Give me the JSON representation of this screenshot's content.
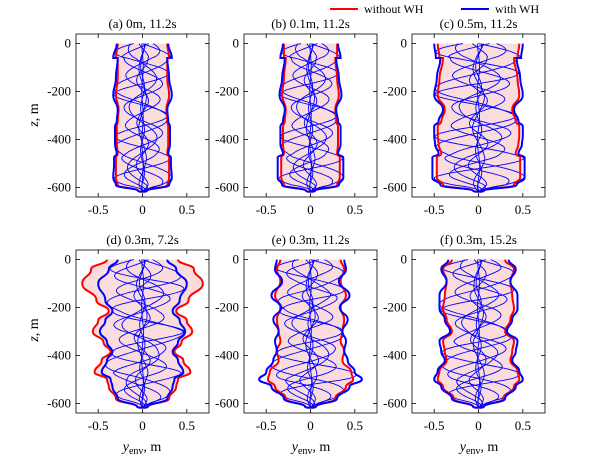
{
  "legend": {
    "items": [
      {
        "label": "without WH",
        "color": "#ff0000"
      },
      {
        "label": "with WH",
        "color": "#0000ff"
      }
    ],
    "placement": "top-right"
  },
  "axes_text": {
    "ylabel_italic": "z",
    "ylabel_rest": ", m",
    "xlabel_main": "y",
    "xlabel_sub": "env",
    "xlabel_rest": ", m"
  },
  "chart_data": [
    {
      "type": "line",
      "title": "(a)   0m, 11.2s",
      "xlim": [
        -0.75,
        0.75
      ],
      "ylim": [
        -640,
        40
      ],
      "xticks": [
        -0.5,
        0,
        0.5
      ],
      "yticks": [
        0,
        -200,
        -400,
        -600
      ],
      "xticklabels": [
        "-0.5",
        "0",
        "0.5"
      ],
      "yticklabels": [
        "0",
        "-200",
        "-400",
        "-600"
      ],
      "fill_color": "#fadcdc",
      "series": [
        {
          "name": "without WH",
          "color": "#ff0000",
          "x_env": [
            0.28,
            0.3,
            0.28,
            0.28,
            0.3,
            0.27,
            0.28,
            0.29,
            0.29,
            0.29,
            0.28,
            0.3,
            0.3,
            0.3,
            0.28,
            0.05,
            0.0
          ],
          "z": [
            0,
            -60,
            -60,
            -145,
            -215,
            -275,
            -325,
            -345,
            -385,
            -420,
            -460,
            -475,
            -500,
            -560,
            -590,
            -615,
            -620
          ]
        },
        {
          "name": "with WH",
          "color": "#0000ff",
          "x_env": [
            0.29,
            0.33,
            0.28,
            0.3,
            0.33,
            0.28,
            0.29,
            0.31,
            0.31,
            0.31,
            0.29,
            0.32,
            0.32,
            0.33,
            0.3,
            0.05,
            0.0
          ],
          "z": [
            0,
            -60,
            -60,
            -145,
            -215,
            -275,
            -325,
            -345,
            -385,
            -420,
            -460,
            -475,
            -500,
            -560,
            -590,
            -615,
            -620
          ]
        }
      ]
    },
    {
      "type": "line",
      "title": "(b)   0.1m, 11.2s",
      "xlim": [
        -0.75,
        0.75
      ],
      "ylim": [
        -640,
        40
      ],
      "xticks": [
        -0.5,
        0,
        0.5
      ],
      "yticks": [
        0,
        -200,
        -400,
        -600
      ],
      "xticklabels": [
        "-0.5",
        "0",
        "0.5"
      ],
      "yticklabels": [
        "0",
        "-200",
        "-400",
        "-600"
      ],
      "fill_color": "#fadcdc",
      "series": [
        {
          "name": "without WH",
          "color": "#ff0000",
          "x_env": [
            0.3,
            0.3,
            0.28,
            0.3,
            0.32,
            0.28,
            0.29,
            0.31,
            0.31,
            0.31,
            0.3,
            0.33,
            0.33,
            0.33,
            0.3,
            0.05,
            0.0
          ],
          "z": [
            0,
            -60,
            -60,
            -145,
            -215,
            -275,
            -325,
            -345,
            -385,
            -420,
            -460,
            -475,
            -500,
            -560,
            -590,
            -615,
            -620
          ]
        },
        {
          "name": "with WH",
          "color": "#0000ff",
          "x_env": [
            0.31,
            0.34,
            0.29,
            0.32,
            0.35,
            0.29,
            0.31,
            0.34,
            0.34,
            0.34,
            0.31,
            0.37,
            0.37,
            0.37,
            0.32,
            0.05,
            0.0
          ],
          "z": [
            0,
            -60,
            -60,
            -145,
            -215,
            -275,
            -325,
            -345,
            -385,
            -420,
            -460,
            -475,
            -500,
            -560,
            -590,
            -615,
            -620
          ]
        }
      ]
    },
    {
      "type": "line",
      "title": "(c)   0.5m, 11.2s",
      "xlim": [
        -0.75,
        0.75
      ],
      "ylim": [
        -640,
        40
      ],
      "xticks": [
        -0.5,
        0,
        0.5
      ],
      "yticks": [
        0,
        -200,
        -400,
        -600
      ],
      "xticklabels": [
        "-0.5",
        "0",
        "0.5"
      ],
      "yticklabels": [
        "0",
        "-200",
        "-400",
        "-600"
      ],
      "fill_color": "#fadcdc",
      "series": [
        {
          "name": "without WH",
          "color": "#ff0000",
          "x_env": [
            0.46,
            0.44,
            0.4,
            0.44,
            0.46,
            0.38,
            0.42,
            0.46,
            0.46,
            0.45,
            0.42,
            0.47,
            0.47,
            0.47,
            0.4,
            0.06,
            0.0
          ],
          "z": [
            0,
            -60,
            -60,
            -145,
            -215,
            -275,
            -325,
            -345,
            -385,
            -420,
            -460,
            -475,
            -500,
            -560,
            -590,
            -615,
            -620
          ]
        },
        {
          "name": "with WH",
          "color": "#0000ff",
          "x_env": [
            0.5,
            0.48,
            0.43,
            0.47,
            0.5,
            0.4,
            0.45,
            0.5,
            0.5,
            0.49,
            0.45,
            0.52,
            0.52,
            0.52,
            0.43,
            0.06,
            0.0
          ],
          "z": [
            0,
            -60,
            -60,
            -145,
            -215,
            -275,
            -325,
            -345,
            -385,
            -420,
            -460,
            -475,
            -500,
            -560,
            -590,
            -615,
            -620
          ]
        }
      ]
    },
    {
      "type": "line",
      "title": "(d)   0.3m, 7.2s",
      "xlim": [
        -0.75,
        0.75
      ],
      "ylim": [
        -640,
        40
      ],
      "xticks": [
        -0.5,
        0,
        0.5
      ],
      "yticks": [
        0,
        -200,
        -400,
        -600
      ],
      "xticklabels": [
        "-0.5",
        "0",
        "0.5"
      ],
      "yticklabels": [
        "0",
        "-200",
        "-400",
        "-600"
      ],
      "fill_color": "#fadcdc",
      "series": [
        {
          "name": "without WH",
          "color": "#ff0000",
          "x_env": [
            0.4,
            0.58,
            0.68,
            0.52,
            0.38,
            0.5,
            0.56,
            0.44,
            0.36,
            0.46,
            0.54,
            0.4,
            0.38,
            0.3,
            0.06,
            0.0
          ],
          "z": [
            0,
            -40,
            -100,
            -170,
            -215,
            -255,
            -300,
            -345,
            -385,
            -420,
            -470,
            -500,
            -530,
            -580,
            -615,
            -620
          ]
        },
        {
          "name": "with WH",
          "color": "#0000ff",
          "x_env": [
            0.28,
            0.38,
            0.5,
            0.42,
            0.34,
            0.42,
            0.48,
            0.4,
            0.34,
            0.4,
            0.46,
            0.36,
            0.34,
            0.28,
            0.06,
            0.0
          ],
          "z": [
            0,
            -40,
            -100,
            -170,
            -215,
            -255,
            -300,
            -345,
            -385,
            -420,
            -470,
            -500,
            -530,
            -580,
            -615,
            -620
          ]
        }
      ]
    },
    {
      "type": "line",
      "title": "(e)   0.3m, 11.2s",
      "xlim": [
        -0.75,
        0.75
      ],
      "ylim": [
        -640,
        40
      ],
      "xticks": [
        -0.5,
        0,
        0.5
      ],
      "yticks": [
        0,
        -200,
        -400,
        -600
      ],
      "xticklabels": [
        "-0.5",
        "0",
        "0.5"
      ],
      "yticklabels": [
        "0",
        "-200",
        "-400",
        "-600"
      ],
      "fill_color": "#fadcdc",
      "series": [
        {
          "name": "without WH",
          "color": "#ff0000",
          "x_env": [
            0.34,
            0.38,
            0.34,
            0.4,
            0.34,
            0.38,
            0.36,
            0.34,
            0.38,
            0.36,
            0.46,
            0.48,
            0.4,
            0.28,
            0.06,
            0.0
          ],
          "z": [
            0,
            -40,
            -90,
            -150,
            -200,
            -250,
            -300,
            -340,
            -380,
            -420,
            -470,
            -500,
            -530,
            -580,
            -615,
            -620
          ]
        },
        {
          "name": "with WH",
          "color": "#0000ff",
          "x_env": [
            0.38,
            0.4,
            0.32,
            0.44,
            0.33,
            0.42,
            0.36,
            0.4,
            0.38,
            0.42,
            0.5,
            0.58,
            0.44,
            0.3,
            0.06,
            0.0
          ],
          "z": [
            0,
            -40,
            -90,
            -150,
            -200,
            -250,
            -300,
            -340,
            -380,
            -420,
            -470,
            -500,
            -530,
            -580,
            -615,
            -620
          ]
        }
      ]
    },
    {
      "type": "line",
      "title": "(f)   0.3m, 15.2s",
      "xlim": [
        -0.75,
        0.75
      ],
      "ylim": [
        -640,
        40
      ],
      "xticks": [
        -0.5,
        0,
        0.5
      ],
      "yticks": [
        0,
        -200,
        -400,
        -600
      ],
      "xticklabels": [
        "-0.5",
        "0",
        "0.5"
      ],
      "yticklabels": [
        "0",
        "-200",
        "-400",
        "-600"
      ],
      "fill_color": "#fadcdc",
      "series": [
        {
          "name": "without WH",
          "color": "#ff0000",
          "x_env": [
            0.3,
            0.4,
            0.36,
            0.38,
            0.4,
            0.36,
            0.3,
            0.4,
            0.38,
            0.36,
            0.44,
            0.46,
            0.4,
            0.28,
            0.06,
            0.0
          ],
          "z": [
            0,
            -40,
            -90,
            -150,
            -205,
            -250,
            -300,
            -340,
            -385,
            -420,
            -465,
            -500,
            -530,
            -580,
            -615,
            -620
          ]
        },
        {
          "name": "with WH",
          "color": "#0000ff",
          "x_env": [
            0.34,
            0.42,
            0.36,
            0.44,
            0.44,
            0.38,
            0.32,
            0.44,
            0.42,
            0.38,
            0.46,
            0.5,
            0.42,
            0.3,
            0.06,
            0.0
          ],
          "z": [
            0,
            -40,
            -90,
            -150,
            -205,
            -250,
            -300,
            -340,
            -385,
            -420,
            -465,
            -500,
            -530,
            -580,
            -615,
            -620
          ]
        }
      ]
    }
  ]
}
